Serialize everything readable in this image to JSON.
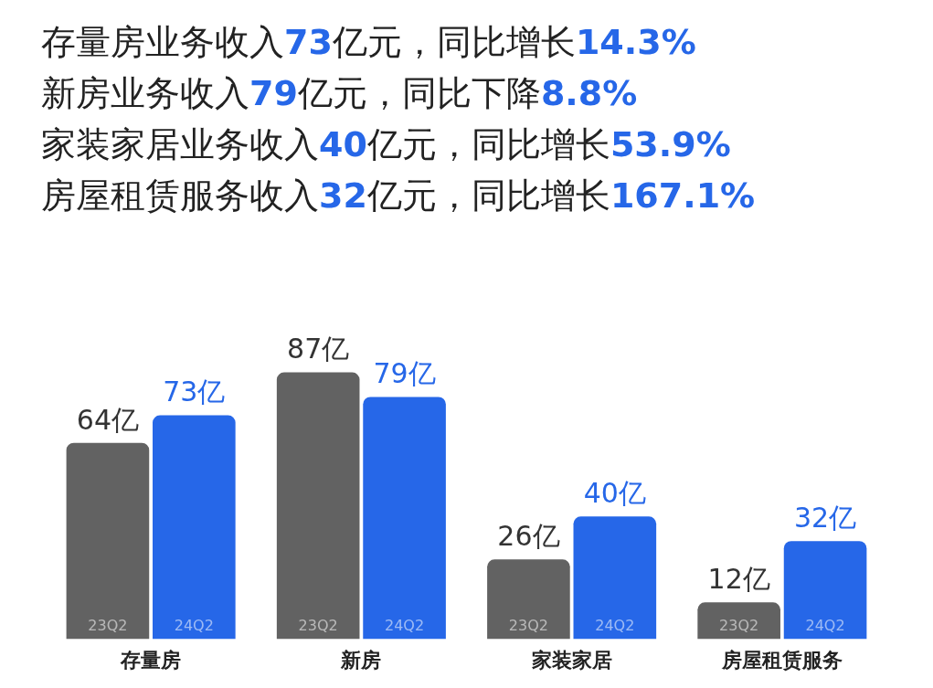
{
  "chart_data": {
    "type": "bar",
    "annotations": [
      "存量房业务收入73亿元，同比增长14.3%",
      "新房业务收入79亿元，同比下降8.8%",
      "家装家居业务收入40亿元，同比增长53.9%",
      "房屋租赁服务收入32亿元，同比增长167.1%"
    ],
    "categories": [
      "存量房",
      "新房",
      "家装家居",
      "房屋租赁服务"
    ],
    "series": [
      {
        "name": "23Q2",
        "color": "#626262",
        "values": [
          64,
          87,
          26,
          12
        ],
        "value_labels": [
          "64亿",
          "87亿",
          "26亿",
          "12亿"
        ]
      },
      {
        "name": "24Q2",
        "color": "#2667e8",
        "values": [
          73,
          79,
          40,
          32
        ],
        "value_labels": [
          "73亿",
          "79亿",
          "40亿",
          "32亿"
        ]
      }
    ],
    "legend": false
  }
}
